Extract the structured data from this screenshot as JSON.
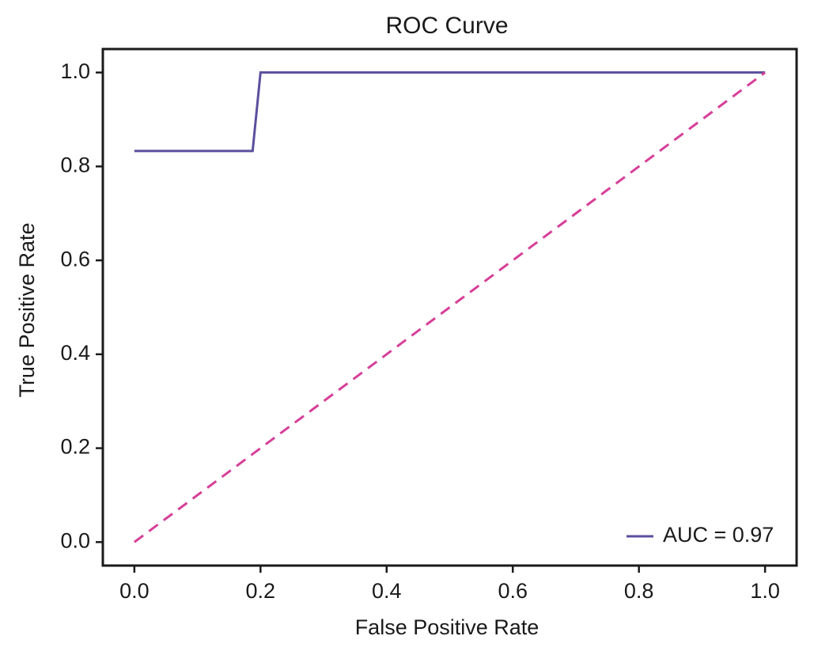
{
  "chart_data": {
    "type": "line",
    "title": "ROC Curve",
    "x_label": "False Positive Rate",
    "y_label": "True Positive Rate",
    "xlim": [
      -0.05,
      1.05
    ],
    "ylim": [
      -0.05,
      1.05
    ],
    "xticks": [
      {
        "value": 0,
        "label": "0.0"
      },
      0.2,
      0.4,
      0.6,
      0.8,
      {
        "value": 1,
        "label": "1.0"
      }
    ],
    "yticks": [
      {
        "value": 0,
        "label": "0.0"
      },
      0.2,
      0.4,
      0.6,
      0.8,
      {
        "value": 1,
        "label": "1.0"
      }
    ],
    "legend_position": "lower right",
    "series": [
      {
        "name": "AUC = 0.97",
        "color": "#5a4f9e",
        "x": [
          0,
          0.1875,
          0.2,
          1
        ],
        "values": [
          0.833,
          0.833,
          1,
          1
        ]
      },
      {
        "color": "#d63f98",
        "dashed": true,
        "x": [
          0,
          1
        ],
        "values": [
          0,
          1
        ]
      }
    ]
  }
}
